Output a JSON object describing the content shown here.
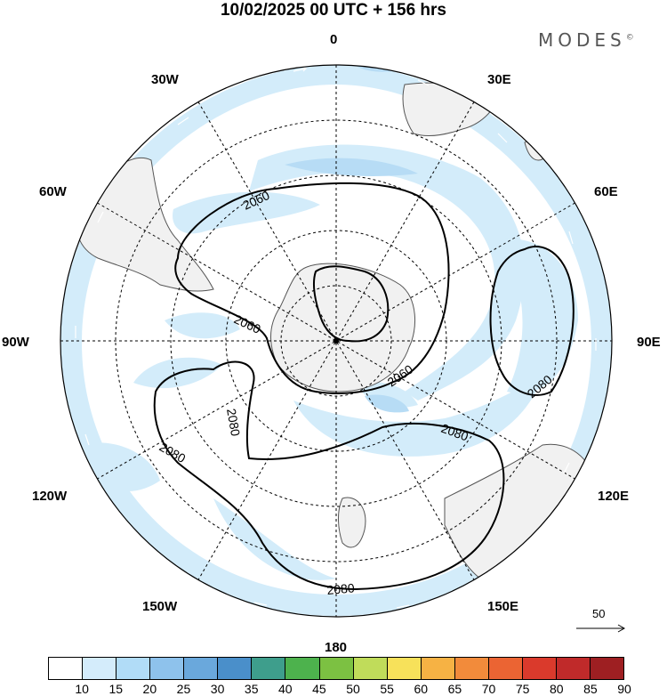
{
  "title": "10/02/2025  00 UTC  + 156 hrs",
  "brand": {
    "name": "MODES",
    "mark": "©"
  },
  "longitude_labels": [
    "0",
    "30E",
    "60E",
    "90E",
    "120E",
    "150E",
    "180",
    "150W",
    "120W",
    "90W",
    "60W",
    "30W"
  ],
  "contour_labels": [
    "2060",
    "2060",
    "2060",
    "2080",
    "2080",
    "2080",
    "2080",
    "2080"
  ],
  "reference_vector": {
    "label": "50"
  },
  "colorbar": {
    "ticks": [
      "10",
      "15",
      "20",
      "25",
      "30",
      "35",
      "40",
      "45",
      "50",
      "55",
      "60",
      "65",
      "70",
      "75",
      "80",
      "85",
      "90"
    ],
    "colors": [
      "#ffffff",
      "#d4ecfb",
      "#b1dcf7",
      "#8ec2ec",
      "#6aa8dc",
      "#4a8fca",
      "#3e9e8c",
      "#4db24d",
      "#7cc142",
      "#c0dc5a",
      "#f7e15a",
      "#f6b244",
      "#f28b3b",
      "#eb6433",
      "#da3a2c",
      "#c02a2a",
      "#9e1f22"
    ]
  }
}
